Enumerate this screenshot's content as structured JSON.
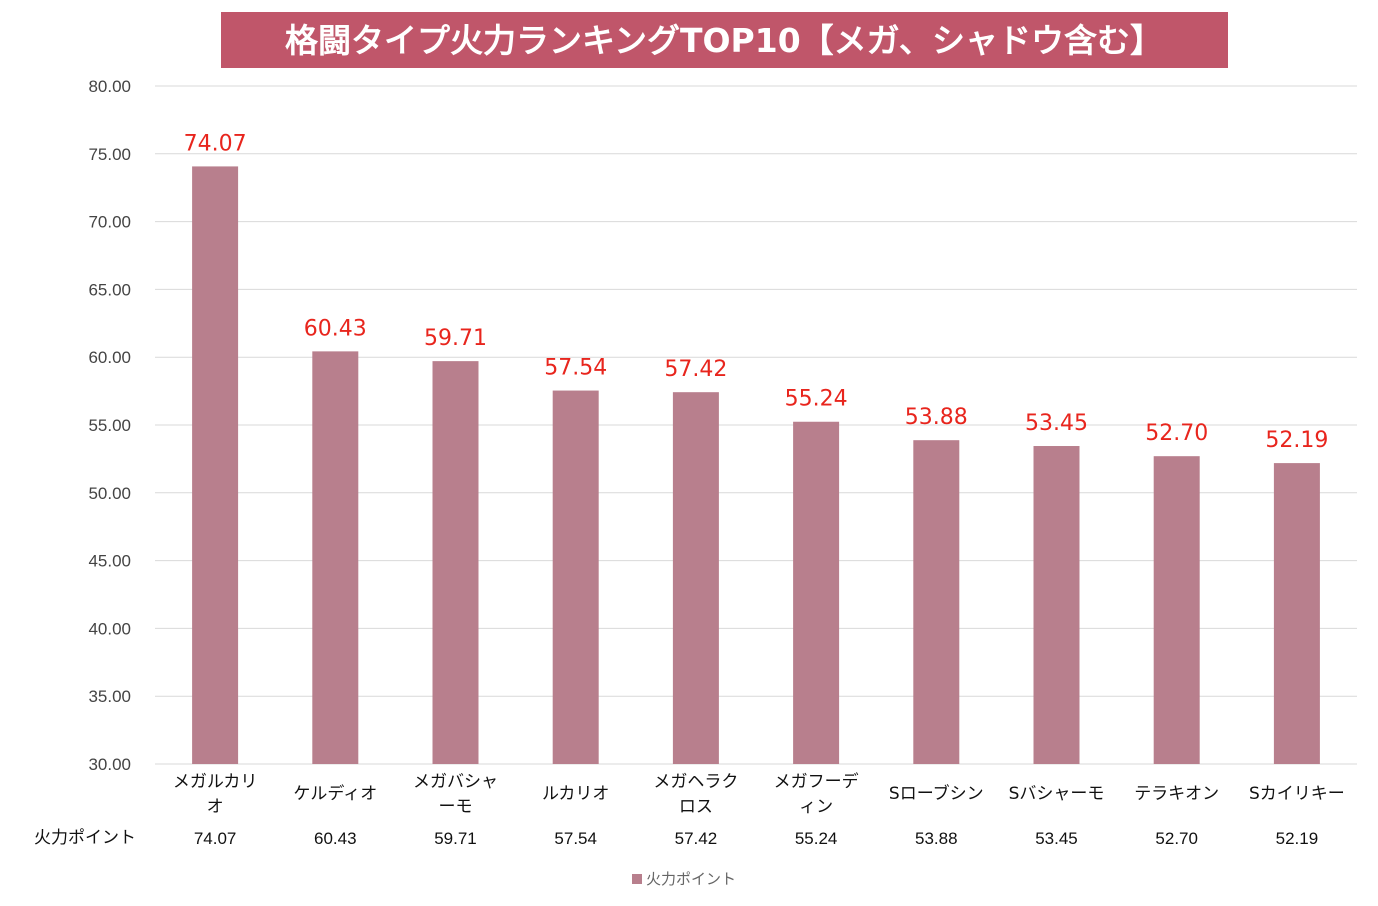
{
  "chart_data": {
    "type": "bar",
    "title": "格闘タイプ火力ランキングTOP10【メガ、シャドウ含む】",
    "categories": [
      [
        "メガルカリ",
        "オ"
      ],
      [
        "ケルディオ"
      ],
      [
        "メガバシャ",
        "ーモ"
      ],
      [
        "ルカリオ"
      ],
      [
        "メガヘラク",
        "ロス"
      ],
      [
        "メガフーデ",
        "ィン"
      ],
      [
        "Sローブシン"
      ],
      [
        "Sバシャーモ"
      ],
      [
        "テラキオン"
      ],
      [
        "Sカイリキー"
      ]
    ],
    "series": [
      {
        "name": "火力ポイント",
        "values": [
          74.07,
          60.43,
          59.71,
          57.54,
          57.42,
          55.24,
          53.88,
          53.45,
          52.7,
          52.19
        ],
        "value_labels": [
          "74.07",
          "60.43",
          "59.71",
          "57.54",
          "57.42",
          "55.24",
          "53.88",
          "53.45",
          "52.70",
          "52.19"
        ]
      }
    ],
    "ylim": [
      30,
      80
    ],
    "yticks": [
      80,
      75,
      70,
      65,
      60,
      55,
      50,
      45,
      40,
      35,
      30
    ],
    "ytick_labels": [
      "80.00",
      "75.00",
      "70.00",
      "65.00",
      "60.00",
      "55.00",
      "50.00",
      "45.00",
      "40.00",
      "35.00",
      "30.00"
    ],
    "xlabel": "",
    "ylabel": "",
    "grid": true,
    "legend_position": "bottom",
    "data_table": true,
    "colors": {
      "bar": "#b87f8d",
      "title_bg": "#c0566a",
      "title_text": "#ffffff",
      "data_label": "#e8251d",
      "grid": "#d9d9d9"
    }
  }
}
